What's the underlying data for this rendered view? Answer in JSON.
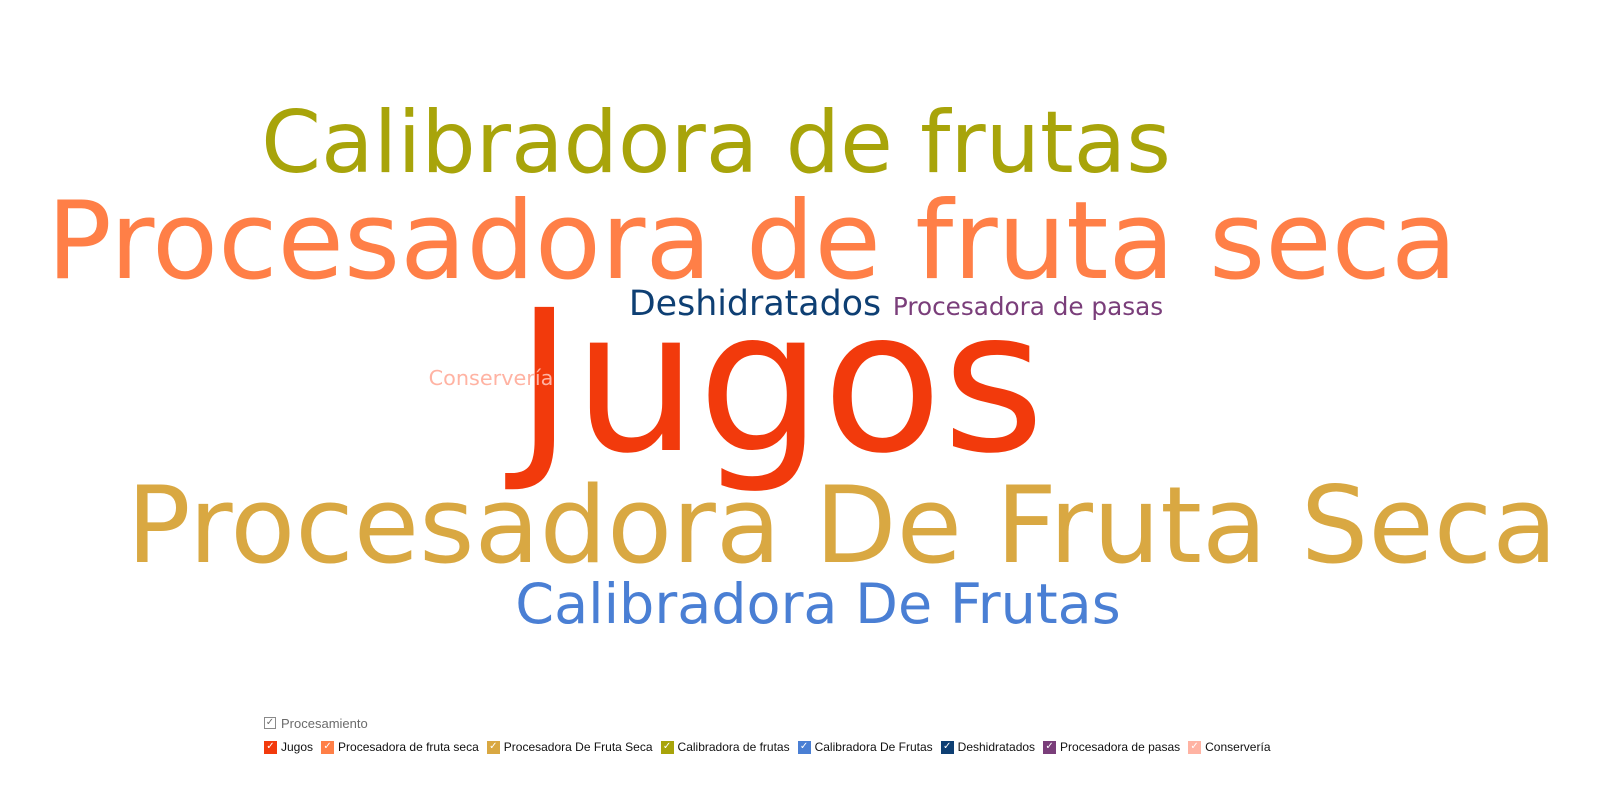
{
  "chart_data": {
    "type": "wordcloud",
    "legend_title": "Procesamiento",
    "legend_placement": "bottom-left",
    "check_glyph": "✓",
    "words": [
      {
        "text": "Jugos",
        "weight": 10,
        "color": "#F23A0C",
        "legend_label": "Jugos"
      },
      {
        "text": "Procesadora de fruta seca",
        "weight": 6.4,
        "color": "#FF7F47",
        "legend_label": "Procesadora de fruta seca"
      },
      {
        "text": "Procesadora De Fruta Seca",
        "weight": 6.2,
        "color": "#D9A842",
        "legend_label": "Procesadora De Fruta Seca"
      },
      {
        "text": "Calibradora de frutas",
        "weight": 5.2,
        "color": "#A8A40A",
        "legend_label": "Calibradora de frutas"
      },
      {
        "text": "Calibradora De Frutas",
        "weight": 3.4,
        "color": "#4A7FD4",
        "legend_label": "Calibradora De Frutas"
      },
      {
        "text": "Deshidratados",
        "weight": 2.3,
        "color": "#0E3F73",
        "legend_label": "Deshidratados"
      },
      {
        "text": "Procesadora de pasas",
        "weight": 1.7,
        "color": "#7A3E7A",
        "legend_label": "Procesadora de pasas"
      },
      {
        "text": "Conservería",
        "weight": 1.4,
        "color": "#FFB3A3",
        "legend_label": "Conservería"
      }
    ]
  }
}
